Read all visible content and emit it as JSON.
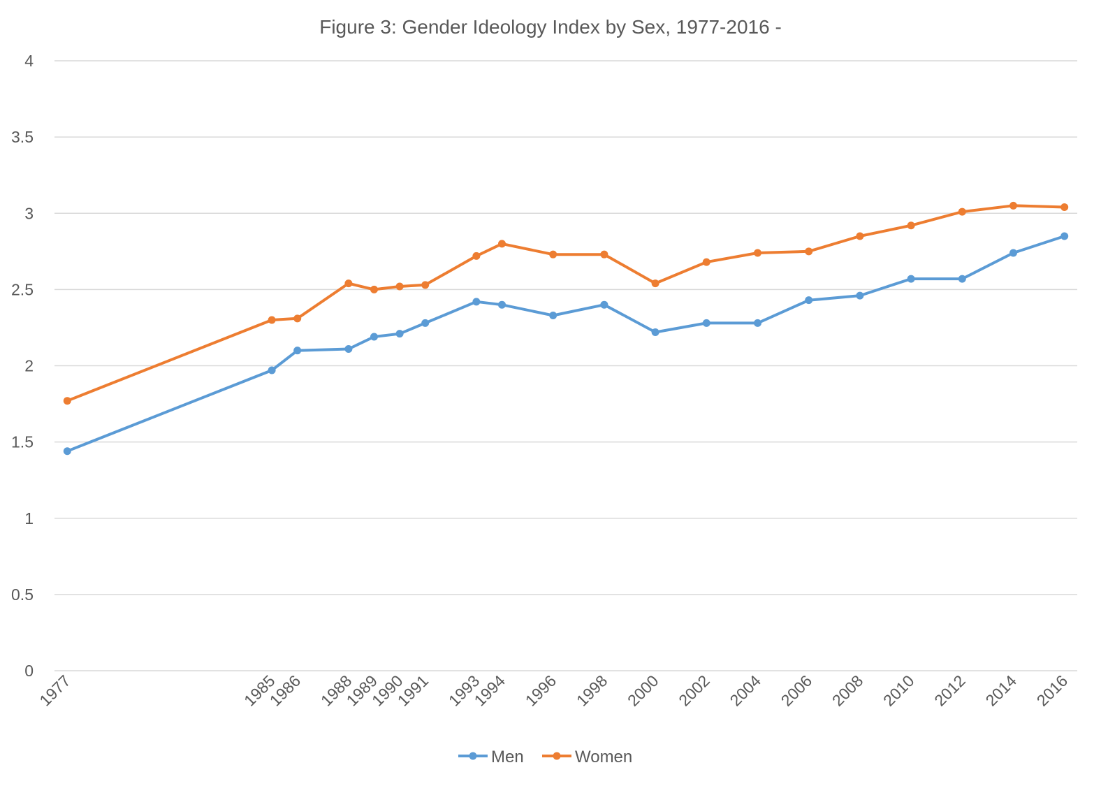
{
  "chart_data": {
    "type": "line",
    "title": "Figure 3: Gender Ideology Index by Sex, 1977-2016 -",
    "xlabel": "",
    "ylabel": "",
    "x": [
      1977,
      1985,
      1986,
      1988,
      1989,
      1990,
      1991,
      1993,
      1994,
      1996,
      1998,
      2000,
      2002,
      2004,
      2006,
      2008,
      2010,
      2012,
      2014,
      2016
    ],
    "x_tick_labels": [
      "1977",
      "1985",
      "1986",
      "1988",
      "1989",
      "1990",
      "1991",
      "1993",
      "1994",
      "1996",
      "1998",
      "2000",
      "2002",
      "2004",
      "2006",
      "2008",
      "2010",
      "2012",
      "2014",
      "2016"
    ],
    "xlim": [
      1976.5,
      2016.5
    ],
    "ylim": [
      0,
      4
    ],
    "y_ticks": [
      0,
      0.5,
      1,
      1.5,
      2,
      2.5,
      3,
      3.5,
      4
    ],
    "y_tick_labels": [
      "0",
      "0.5",
      "1",
      "1.5",
      "2",
      "2.5",
      "3",
      "3.5",
      "4"
    ],
    "grid": true,
    "legend_position": "bottom",
    "series": [
      {
        "name": "Men",
        "color": "#5b9bd5",
        "values": [
          1.44,
          1.97,
          2.1,
          2.11,
          2.19,
          2.21,
          2.28,
          2.42,
          2.4,
          2.33,
          2.4,
          2.22,
          2.28,
          2.28,
          2.43,
          2.46,
          2.57,
          2.57,
          2.74,
          2.85
        ]
      },
      {
        "name": "Women",
        "color": "#ed7d31",
        "values": [
          1.77,
          2.3,
          2.31,
          2.54,
          2.5,
          2.52,
          2.53,
          2.72,
          2.8,
          2.73,
          2.73,
          2.54,
          2.68,
          2.74,
          2.75,
          2.85,
          2.92,
          3.01,
          3.05,
          3.04
        ]
      }
    ]
  }
}
